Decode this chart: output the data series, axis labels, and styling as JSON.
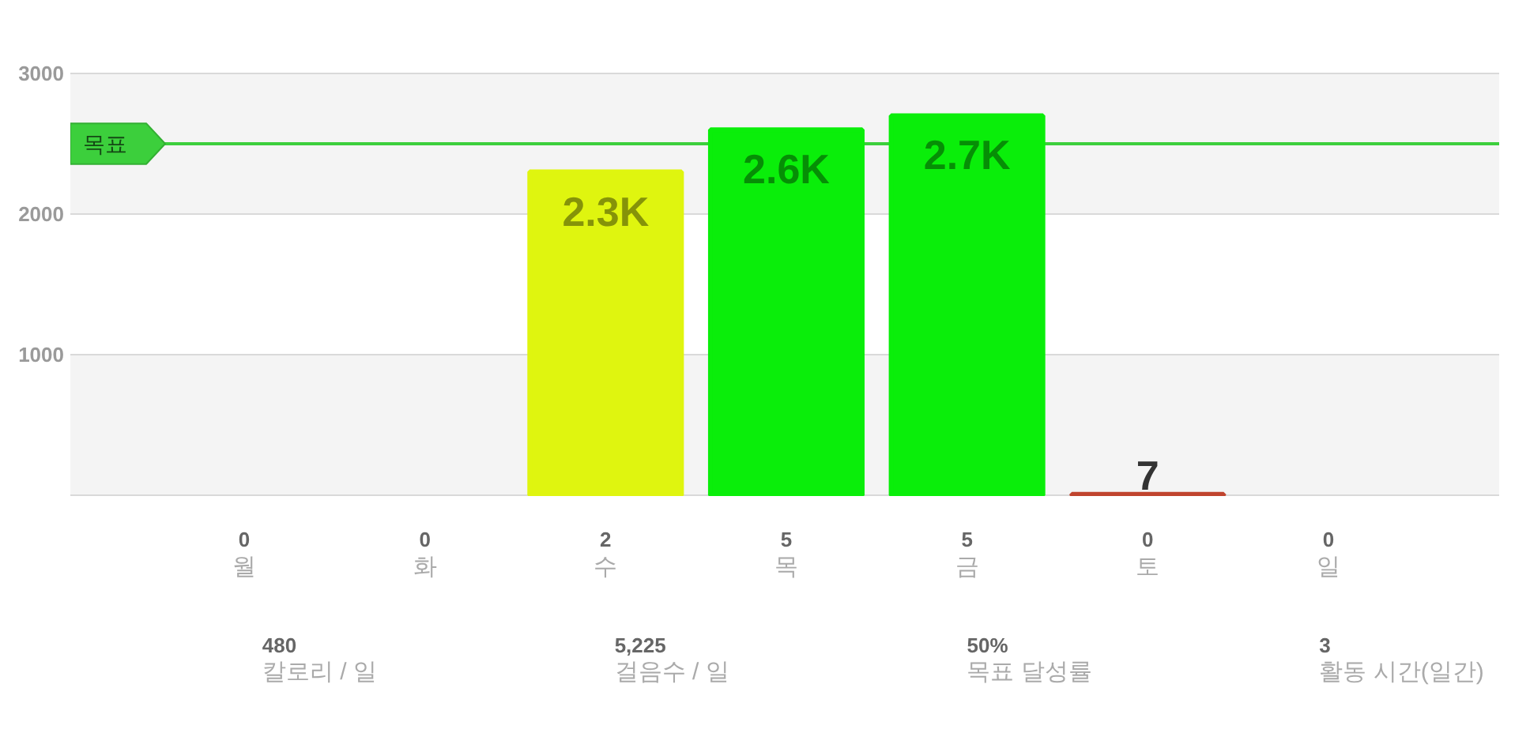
{
  "chart_data": {
    "type": "bar",
    "categories": [
      "월",
      "화",
      "수",
      "목",
      "금",
      "토",
      "일"
    ],
    "values": [
      null,
      null,
      2300,
      2600,
      2700,
      7,
      null
    ],
    "colors": [
      null,
      null,
      "#dff50f",
      "#0aee0a",
      "#0aee0a",
      "#c0442e",
      null
    ],
    "value_labels": [
      null,
      null,
      "2.3K",
      "2.6K",
      "2.7K",
      "7",
      null
    ],
    "ylim": [
      0,
      3000
    ],
    "yticks": [
      {
        "value": 0,
        "label": null
      },
      1000,
      2000,
      3000
    ],
    "grid": "y",
    "bands": [
      {
        "axis": "y",
        "from": 0,
        "to": 1000,
        "color": "#f4f4f4"
      },
      {
        "axis": "y",
        "from": 2000,
        "to": 3000,
        "color": "#f4f4f4"
      }
    ],
    "ref_lines": [
      {
        "axis": "y",
        "value": 2500,
        "label": "목표",
        "color": "#3ccf3c"
      }
    ],
    "annotations": [
      "0",
      "0",
      "2",
      "5",
      "5",
      "0",
      "0",
      "480",
      "칼로리 / 일",
      "5,225",
      "걸음수 / 일",
      "50%",
      "목표 달성률",
      "3",
      "활동 시간(일간)"
    ]
  }
}
